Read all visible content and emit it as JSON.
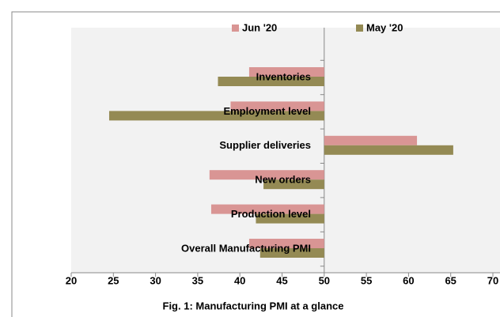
{
  "chart_data": {
    "type": "barh",
    "title": "Fig. 1: Manufacturing PMI at a glance",
    "categories": [
      "Inventories",
      "Employment level",
      "Supplier deliveries",
      "New orders",
      "Production level",
      "Overall Manufacturing PMI"
    ],
    "series": [
      {
        "name": "Jun '20",
        "color": "#d99594",
        "values": [
          41.1,
          38.9,
          61.0,
          36.4,
          36.6,
          41.1
        ]
      },
      {
        "name": "May '20",
        "color": "#948a54",
        "values": [
          37.4,
          24.5,
          65.3,
          42.8,
          41.9,
          42.4
        ]
      }
    ],
    "xlim": [
      20,
      70
    ],
    "xticks": [
      20,
      25,
      30,
      35,
      40,
      45,
      50,
      55,
      60,
      65,
      70
    ],
    "axis_crosses": 50,
    "legend": "top"
  }
}
